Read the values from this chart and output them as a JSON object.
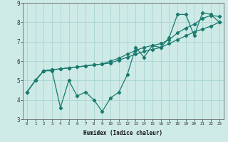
{
  "xlabel": "Humidex (Indice chaleur)",
  "x": [
    0,
    1,
    2,
    3,
    4,
    5,
    6,
    7,
    8,
    9,
    10,
    11,
    12,
    13,
    14,
    15,
    16,
    17,
    18,
    19,
    20,
    21,
    22,
    23
  ],
  "line1": [
    4.4,
    5.0,
    5.5,
    5.5,
    3.6,
    5.0,
    4.2,
    4.4,
    4.0,
    3.4,
    4.1,
    4.4,
    5.3,
    6.7,
    6.2,
    6.8,
    6.7,
    7.2,
    8.4,
    8.4,
    7.3,
    8.5,
    8.4,
    8.0
  ],
  "line2": [
    4.4,
    5.0,
    5.5,
    5.55,
    5.6,
    5.65,
    5.7,
    5.75,
    5.8,
    5.85,
    5.9,
    6.05,
    6.2,
    6.35,
    6.5,
    6.6,
    6.7,
    6.9,
    7.1,
    7.3,
    7.5,
    7.65,
    7.8,
    8.0
  ],
  "line3": [
    4.4,
    5.0,
    5.5,
    5.55,
    5.6,
    5.65,
    5.7,
    5.75,
    5.8,
    5.85,
    6.0,
    6.15,
    6.35,
    6.55,
    6.7,
    6.8,
    6.9,
    7.1,
    7.45,
    7.7,
    7.9,
    8.2,
    8.35,
    8.3
  ],
  "line_color": "#1a7a6e",
  "bg_color": "#ceeae7",
  "grid_color": "#a8d5d0",
  "ylim": [
    3,
    9
  ],
  "xlim": [
    -0.5,
    23.5
  ],
  "yticks": [
    3,
    4,
    5,
    6,
    7,
    8,
    9
  ],
  "xticks": [
    0,
    1,
    2,
    3,
    4,
    5,
    6,
    7,
    8,
    9,
    10,
    11,
    12,
    13,
    14,
    15,
    16,
    17,
    18,
    19,
    20,
    21,
    22,
    23
  ],
  "marker": "D",
  "markersize": 2.2,
  "linewidth": 0.9
}
